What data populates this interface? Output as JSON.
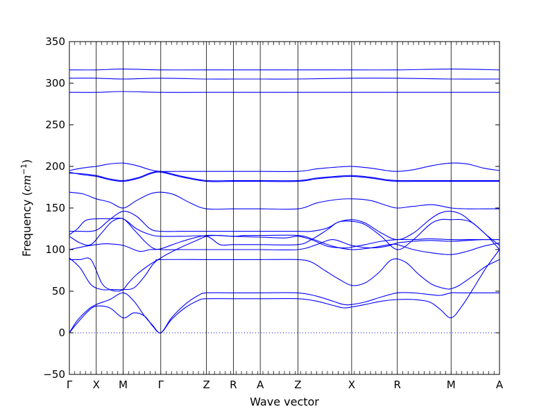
{
  "chart_data": {
    "type": "line",
    "title": "",
    "xlabel": "Wave vector",
    "ylabel": {
      "prefix": "Frequency (",
      "unit": "cm",
      "exponent": "−1",
      "suffix": ")"
    },
    "ylim": [
      -50,
      350
    ],
    "yticks": [
      -50,
      0,
      50,
      100,
      150,
      200,
      250,
      300,
      350
    ],
    "xlim": [
      0,
      16
    ],
    "high_symmetry_points": [
      {
        "label": "Γ",
        "x": 0.0
      },
      {
        "label": "X",
        "x": 1.0
      },
      {
        "label": "M",
        "x": 2.0
      },
      {
        "label": "Γ",
        "x": 3.4
      },
      {
        "label": "Z",
        "x": 5.1
      },
      {
        "label": "R",
        "x": 6.1
      },
      {
        "label": "A",
        "x": 7.1
      },
      {
        "label": "Z",
        "x": 8.5
      },
      {
        "label": "X",
        "x": 10.5
      },
      {
        "label": "R",
        "x": 12.2
      },
      {
        "label": "M",
        "x": 14.2
      },
      {
        "label": "A",
        "x": 16.0
      }
    ],
    "zero_line": {
      "y": 0,
      "style": "dotted"
    },
    "grid": false,
    "color": "#0000ff",
    "series": [
      {
        "x": [
          0,
          0.3,
          0.7,
          1.0,
          1.5,
          2.0,
          2.4,
          2.8,
          3.1,
          3.4,
          3.8,
          4.3,
          4.8,
          5.1,
          6.1,
          7.1,
          8.5,
          9.2,
          9.8,
          10.2,
          10.5,
          11.0,
          11.6,
          12.2,
          12.8,
          13.4,
          13.8,
          14.2,
          14.6,
          15.0,
          15.5,
          16.0
        ],
        "y": [
          0,
          12,
          26,
          32,
          30,
          18,
          24,
          20,
          8,
          0,
          16,
          30,
          39,
          41,
          41,
          41,
          41,
          38,
          33,
          30,
          31,
          34,
          38,
          40,
          40,
          37,
          28,
          18,
          32,
          52,
          78,
          100
        ]
      },
      {
        "x": [
          0,
          0.3,
          0.7,
          1.0,
          1.5,
          2.0,
          2.4,
          2.8,
          3.1,
          3.4,
          3.8,
          4.3,
          4.8,
          5.1,
          6.1,
          7.1,
          8.5,
          9.2,
          9.8,
          10.2,
          10.5,
          11.0,
          11.6,
          12.2,
          12.8,
          13.4,
          13.8,
          14.2,
          14.6,
          15.0,
          15.5,
          16.0
        ],
        "y": [
          0,
          15,
          28,
          34,
          40,
          48,
          38,
          20,
          9,
          0,
          18,
          34,
          45,
          48,
          48,
          48,
          48,
          44,
          38,
          34,
          34,
          37,
          43,
          48,
          48,
          46,
          45,
          48,
          48,
          48,
          48,
          48
        ]
      },
      {
        "x": [
          0,
          0.4,
          0.8,
          1.2,
          1.5,
          1.8,
          2.0,
          2.2,
          2.5,
          2.9,
          3.2,
          3.4,
          5.1,
          6.1,
          7.1,
          8.5,
          9.0,
          9.5,
          10.0,
          10.5,
          11.0,
          11.5,
          12.0,
          12.5,
          13.0,
          13.5,
          14.0,
          14.2,
          14.5,
          15.0,
          15.5,
          16.0
        ],
        "y": [
          88,
          88,
          88,
          60,
          52,
          50,
          52,
          60,
          70,
          80,
          86,
          88,
          88,
          88,
          88,
          88,
          85,
          75,
          65,
          57,
          60,
          72,
          88,
          85,
          70,
          58,
          53,
          53,
          57,
          68,
          80,
          88
        ]
      },
      {
        "x": [
          0,
          0.4,
          0.8,
          1.2,
          1.6,
          2.0,
          2.4,
          2.8,
          3.1,
          3.4,
          4.1,
          4.8,
          5.1,
          5.5,
          6.1,
          7.1,
          8.0,
          8.5,
          9.0,
          9.6,
          10.2,
          10.5,
          11.0,
          11.6,
          12.2,
          12.8,
          13.4,
          14.2,
          14.8,
          15.4,
          16.0
        ],
        "y": [
          90,
          78,
          58,
          52,
          52,
          52,
          54,
          68,
          82,
          90,
          102,
          112,
          116,
          117,
          116,
          115,
          114,
          116,
          112,
          104,
          102,
          103,
          106,
          110,
          112,
          112,
          113,
          112,
          112,
          112,
          112
        ]
      },
      {
        "x": [
          0,
          0.3,
          0.6,
          1.0,
          1.4,
          2.0,
          2.6,
          3.0,
          3.4,
          4.2,
          5.1,
          6.1,
          6.5,
          7.1,
          8.5,
          9.1,
          9.8,
          10.5,
          11.2,
          11.9,
          12.2,
          12.8,
          13.5,
          14.2,
          14.8,
          15.4,
          16.0
        ],
        "y": [
          100,
          102,
          104,
          106,
          107,
          105,
          98,
          100,
          101,
          110,
          117,
          116,
          117,
          117,
          117,
          112,
          104,
          100,
          102,
          106,
          106,
          100,
          96,
          94,
          98,
          104,
          108
        ]
      },
      {
        "x": [
          0,
          0.4,
          0.8,
          1.2,
          1.6,
          2.0,
          2.4,
          2.8,
          3.1,
          3.4,
          4.2,
          5.1,
          6.1,
          7.1,
          8.5,
          9.2,
          9.8,
          10.5,
          11.2,
          11.8,
          12.2,
          12.8,
          13.4,
          14.2,
          14.8,
          15.4,
          16.0
        ],
        "y": [
          116,
          108,
          106,
          120,
          134,
          137,
          124,
          110,
          102,
          100,
          100,
          100,
          100,
          100,
          100,
          106,
          112,
          105,
          102,
          104,
          108,
          110,
          111,
          110,
          111,
          112,
          112
        ]
      },
      {
        "x": [
          0,
          0.3,
          0.6,
          1.0,
          1.5,
          2.0,
          2.5,
          3.0,
          3.4,
          4.2,
          5.1,
          5.6,
          6.1,
          7.1,
          8.5,
          9.0,
          9.6,
          10.0,
          10.5,
          11.0,
          11.6,
          12.2,
          12.8,
          13.4,
          13.8,
          14.2,
          14.6,
          15.0,
          15.5,
          16.0
        ],
        "y": [
          118,
          125,
          135,
          137,
          137,
          137,
          125,
          118,
          116,
          116,
          116,
          106,
          106,
          106,
          106,
          112,
          124,
          133,
          134,
          130,
          116,
          100,
          112,
          130,
          136,
          136,
          136,
          132,
          118,
          105
        ]
      },
      {
        "x": [
          0,
          0.4,
          0.8,
          1.1,
          1.5,
          2.0,
          2.5,
          3.0,
          3.4,
          4.2,
          5.1,
          6.1,
          7.1,
          8.5,
          9.0,
          9.6,
          10.0,
          10.5,
          11.0,
          11.6,
          12.2,
          12.8,
          13.4,
          13.8,
          14.2,
          14.6,
          15.0,
          15.5,
          16.0
        ],
        "y": [
          122,
          122,
          122,
          125,
          136,
          146,
          140,
          125,
          122,
          122,
          122,
          122,
          122,
          122,
          122,
          126,
          133,
          136,
          132,
          120,
          112,
          120,
          136,
          144,
          146,
          142,
          132,
          118,
          100
        ]
      },
      {
        "x": [
          0,
          0.5,
          1.0,
          1.5,
          2.0,
          2.5,
          3.0,
          3.4,
          3.9,
          4.5,
          5.1,
          6.1,
          7.1,
          8.5,
          9.2,
          9.9,
          10.5,
          11.2,
          11.8,
          12.2,
          12.8,
          13.5,
          14.2,
          14.8,
          15.4,
          16.0
        ],
        "y": [
          169,
          167,
          161,
          157,
          150,
          159,
          167,
          169,
          166,
          156,
          149,
          149,
          149,
          149,
          156,
          160,
          161,
          159,
          153,
          150,
          152,
          154,
          150,
          149,
          149,
          149
        ]
      },
      {
        "x": [
          0,
          0.5,
          1.0,
          1.5,
          2.0,
          2.6,
          3.0,
          3.4,
          4.2,
          5.1,
          6.1,
          7.1,
          8.5,
          9.2,
          9.9,
          10.5,
          11.2,
          11.8,
          12.2,
          12.8,
          13.5,
          14.2,
          14.8,
          15.4,
          16.0
        ],
        "y": [
          193,
          190,
          188,
          184,
          182,
          186,
          191,
          193,
          187,
          182,
          182,
          182,
          182,
          185,
          187,
          188,
          186,
          183,
          182,
          182,
          182,
          182,
          182,
          182,
          182
        ]
      },
      {
        "x": [
          0,
          0.5,
          1.0,
          1.5,
          2.0,
          2.6,
          3.0,
          3.4,
          4.2,
          5.1,
          6.1,
          7.1,
          8.5,
          9.2,
          9.9,
          10.5,
          11.2,
          11.8,
          12.2,
          12.8,
          13.5,
          14.2,
          14.8,
          15.4,
          16.0
        ],
        "y": [
          192,
          191,
          189,
          185,
          183,
          187,
          192,
          194,
          188,
          183,
          183,
          183,
          183,
          186,
          188,
          189,
          187,
          184,
          183,
          183,
          183,
          183,
          183,
          183,
          183
        ]
      },
      {
        "x": [
          0,
          0.3,
          0.7,
          1.0,
          1.5,
          2.0,
          2.5,
          3.0,
          3.4,
          4.2,
          5.1,
          6.1,
          7.1,
          8.5,
          9.2,
          9.9,
          10.5,
          11.2,
          11.8,
          12.2,
          12.8,
          13.5,
          14.2,
          14.8,
          15.4,
          16.0
        ],
        "y": [
          195,
          197,
          199,
          200,
          203,
          204,
          201,
          196,
          194,
          194,
          194,
          194,
          194,
          194,
          197,
          199,
          200,
          198,
          195,
          194,
          196,
          201,
          204,
          203,
          198,
          195
        ]
      },
      {
        "x": [
          0,
          1.0,
          2.0,
          3.4,
          5.1,
          6.1,
          7.1,
          8.5,
          10.5,
          12.2,
          14.2,
          16.0
        ],
        "y": [
          289,
          289,
          290,
          289,
          289,
          289,
          289,
          289,
          289,
          289,
          289,
          289
        ]
      },
      {
        "x": [
          0,
          1.0,
          2.0,
          3.4,
          5.1,
          6.1,
          7.1,
          8.5,
          10.5,
          12.2,
          14.2,
          16.0
        ],
        "y": [
          306,
          306,
          305,
          306,
          305,
          305,
          305,
          305,
          306,
          306,
          305,
          305
        ]
      },
      {
        "x": [
          0,
          1.0,
          2.0,
          3.4,
          5.1,
          6.1,
          7.1,
          8.5,
          10.5,
          12.2,
          14.2,
          16.0
        ],
        "y": [
          316,
          316,
          317,
          316,
          316,
          316,
          316,
          316,
          316,
          316,
          317,
          316
        ]
      }
    ]
  }
}
